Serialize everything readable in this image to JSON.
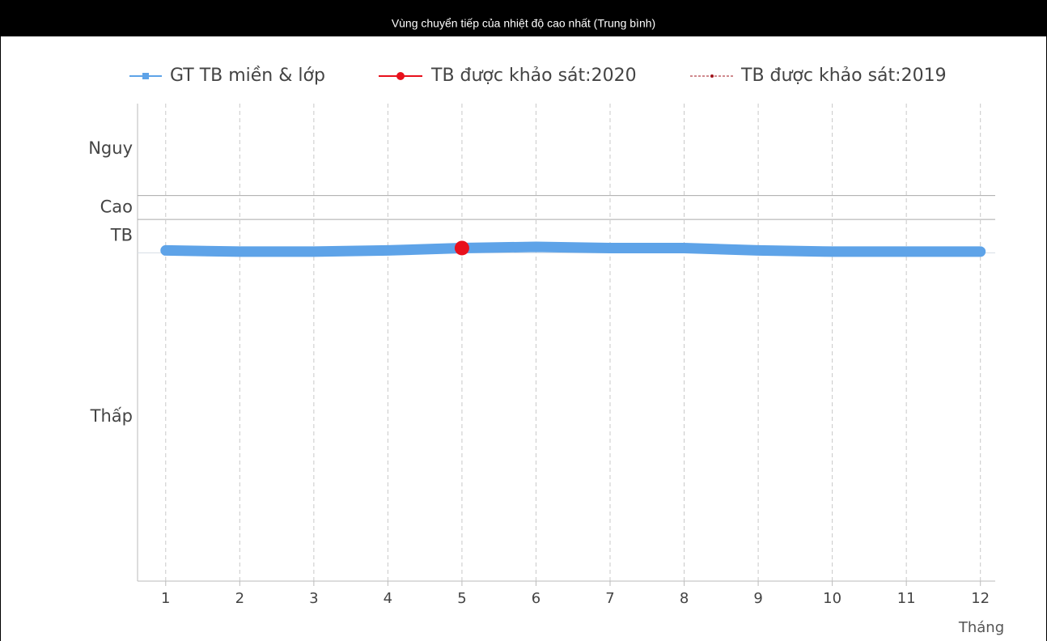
{
  "chart_data": {
    "type": "line",
    "title": "Vùng chuyển tiếp của nhiệt độ cao nhất (Trung bình)",
    "x_label": "Tháng",
    "x": [
      1,
      2,
      3,
      4,
      5,
      6,
      7,
      8,
      9,
      10,
      11,
      12
    ],
    "xlim": [
      0.62,
      12.2
    ],
    "xticks": [
      1,
      2,
      3,
      4,
      5,
      6,
      7,
      8,
      9,
      10,
      11,
      12
    ],
    "ylim": [
      0,
      40
    ],
    "yticks": [
      {
        "value": 13.75,
        "label": "Thấp"
      },
      {
        "value": 28.9,
        "label": "TB"
      },
      {
        "value": 31.3,
        "label": "Cao"
      },
      {
        "value": 36.2,
        "label": "Nguy"
      }
    ],
    "thresholds": [
      27.5,
      30.3,
      32.3
    ],
    "grid": true,
    "series": [
      {
        "name": "GT TB miền & lớp",
        "color": "#5ea3e8",
        "values": [
          27.7,
          27.6,
          27.6,
          27.7,
          27.9,
          28.0,
          27.9,
          27.9,
          27.7,
          27.6,
          27.6,
          27.6
        ]
      },
      {
        "name": "TB được khảo sát:2020",
        "color": "#e8101c",
        "values": [
          null,
          null,
          null,
          null,
          27.9,
          null,
          null,
          null,
          null,
          null,
          null,
          null
        ]
      },
      {
        "name": "TB được khảo sát:2019",
        "color": "#a0141c",
        "values": [
          null,
          null,
          null,
          null,
          null,
          null,
          null,
          null,
          null,
          null,
          null,
          null
        ]
      }
    ]
  }
}
